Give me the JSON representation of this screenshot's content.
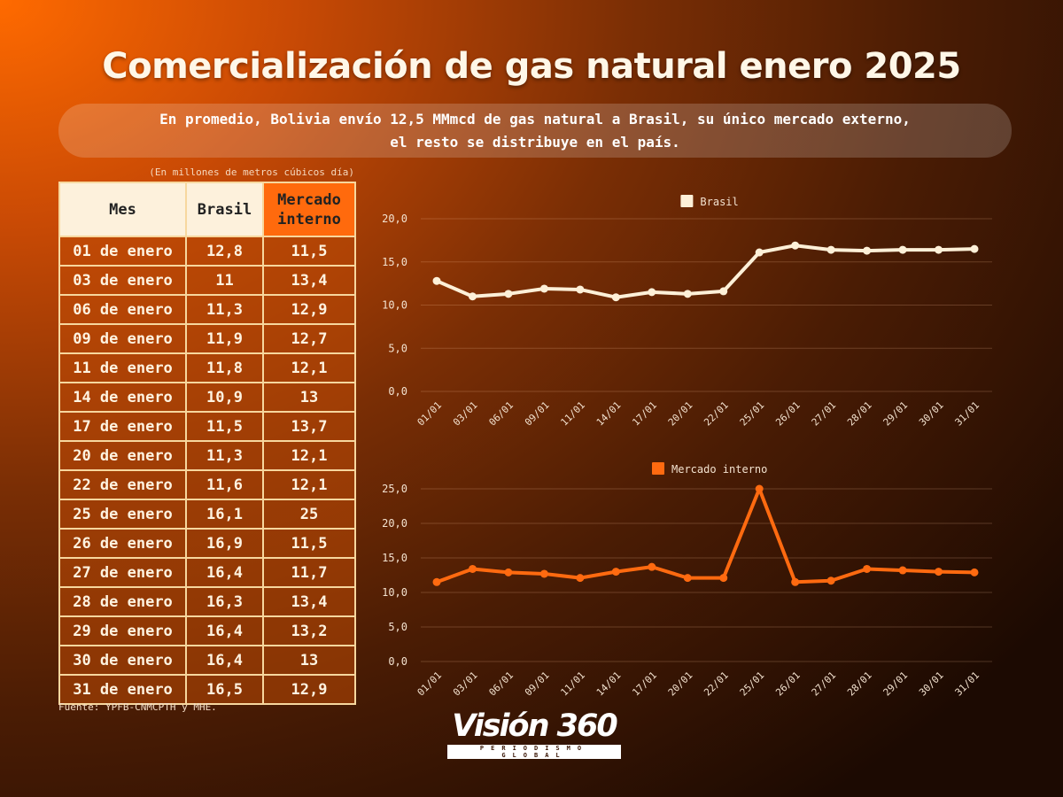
{
  "header": {
    "title": "Comercialización de gas natural enero 2025",
    "subtitle_line1": "En promedio, Bolivia envío 12,5 MMmcd de gas natural a Brasil, su único mercado externo,",
    "subtitle_line2": "el resto se distribuye en el país."
  },
  "table": {
    "unit_note": "(En millones de metros cúbicos día)",
    "columns": [
      "Mes",
      "Brasil",
      "Mercado interno"
    ],
    "rows": [
      [
        "01 de enero",
        "12,8",
        "11,5"
      ],
      [
        "03 de enero",
        "11",
        "13,4"
      ],
      [
        "06 de enero",
        "11,3",
        "12,9"
      ],
      [
        "09 de enero",
        "11,9",
        "12,7"
      ],
      [
        "11 de enero",
        "11,8",
        "12,1"
      ],
      [
        "14 de enero",
        "10,9",
        "13"
      ],
      [
        "17 de enero",
        "11,5",
        "13,7"
      ],
      [
        "20 de enero",
        "11,3",
        "12,1"
      ],
      [
        "22 de enero",
        "11,6",
        "12,1"
      ],
      [
        "25 de enero",
        "16,1",
        "25"
      ],
      [
        "26 de enero",
        "16,9",
        "11,5"
      ],
      [
        "27 de enero",
        "16,4",
        "11,7"
      ],
      [
        "28 de enero",
        "16,3",
        "13,4"
      ],
      [
        "29 de enero",
        "16,4",
        "13,2"
      ],
      [
        "30 de enero",
        "16,4",
        "13"
      ],
      [
        "31 de enero",
        "16,5",
        "12,9"
      ]
    ],
    "source": "Fuente: YPFB-CNMCPTH y MHE."
  },
  "chart_data": [
    {
      "type": "line",
      "title": "",
      "legend": "Brasil",
      "legend_position": "top-center",
      "color": "#fdf0d8",
      "x": [
        "01/01",
        "03/01",
        "06/01",
        "09/01",
        "11/01",
        "14/01",
        "17/01",
        "20/01",
        "22/01",
        "25/01",
        "26/01",
        "27/01",
        "28/01",
        "29/01",
        "30/01",
        "31/01"
      ],
      "values": [
        12.8,
        11,
        11.3,
        11.9,
        11.8,
        10.9,
        11.5,
        11.3,
        11.6,
        16.1,
        16.9,
        16.4,
        16.3,
        16.4,
        16.4,
        16.5
      ],
      "ylim": [
        0,
        20
      ],
      "yticks": [
        "0,0",
        "5,0",
        "10,0",
        "15,0",
        "20,0"
      ],
      "grid": true
    },
    {
      "type": "line",
      "title": "",
      "legend": "Mercado interno",
      "legend_position": "top-center",
      "color": "#ff6a10",
      "x": [
        "01/01",
        "03/01",
        "06/01",
        "09/01",
        "11/01",
        "14/01",
        "17/01",
        "20/01",
        "22/01",
        "25/01",
        "26/01",
        "27/01",
        "28/01",
        "29/01",
        "30/01",
        "31/01"
      ],
      "values": [
        11.5,
        13.4,
        12.9,
        12.7,
        12.1,
        13,
        13.7,
        12.1,
        12.1,
        25,
        11.5,
        11.7,
        13.4,
        13.2,
        13,
        12.9
      ],
      "ylim": [
        0,
        25
      ],
      "yticks": [
        "0,0",
        "5,0",
        "10,0",
        "15,0",
        "20,0",
        "25,0"
      ],
      "grid": true
    }
  ],
  "logo": {
    "main": "Visión 360",
    "tagline": "PERIODISMO GLOBAL"
  }
}
